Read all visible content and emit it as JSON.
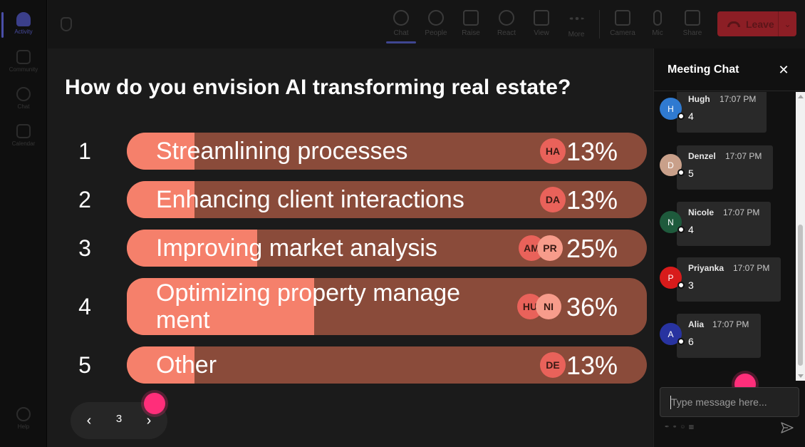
{
  "rail": {
    "items": [
      {
        "label": "Activity",
        "active": true
      },
      {
        "label": "Community",
        "active": false
      },
      {
        "label": "Chat",
        "active": false
      },
      {
        "label": "Calendar",
        "active": false
      }
    ],
    "help_label": "Help"
  },
  "toolbar": {
    "items": [
      {
        "label": "Chat",
        "icon": "chat-icon"
      },
      {
        "label": "People",
        "icon": "people-icon"
      },
      {
        "label": "Raise",
        "icon": "raise-hand-icon"
      },
      {
        "label": "React",
        "icon": "react-icon"
      },
      {
        "label": "View",
        "icon": "view-icon"
      },
      {
        "label": "More",
        "icon": "more-icon"
      },
      {
        "label": "Camera",
        "icon": "camera-icon"
      },
      {
        "label": "Mic",
        "icon": "mic-icon"
      },
      {
        "label": "Share",
        "icon": "share-icon"
      }
    ],
    "leave_label": "Leave",
    "leave_color": "#8c1e25"
  },
  "poll": {
    "question": "How do you envision AI transforming real estate?",
    "options": [
      {
        "number": "1",
        "text": "Streamlining processes",
        "percent": "13%",
        "fraction": 0.13,
        "avatars": [
          "HA"
        ]
      },
      {
        "number": "2",
        "text": "Enhancing client interactions",
        "percent": "13%",
        "fraction": 0.13,
        "avatars": [
          "DA"
        ]
      },
      {
        "number": "3",
        "text": "Improving market analysis",
        "percent": "25%",
        "fraction": 0.25,
        "avatars": [
          "AM",
          "PR"
        ]
      },
      {
        "number": "4",
        "text": "Optimizing property manage ment",
        "percent": "36%",
        "fraction": 0.36,
        "avatars": [
          "HU",
          "NI"
        ]
      },
      {
        "number": "5",
        "text": "Other",
        "percent": "13%",
        "fraction": 0.13,
        "avatars": [
          "DE"
        ]
      }
    ],
    "colors": {
      "fill": "#f5806b",
      "track": "#8a4b3a"
    },
    "page": "3"
  },
  "chat": {
    "title": "Meeting Chat",
    "messages": [
      {
        "initial": "H",
        "name": "Hugh",
        "time": "17:07 PM",
        "text": "4",
        "color": "#2f7ad1"
      },
      {
        "initial": "D",
        "name": "Denzel",
        "time": "17:07 PM",
        "text": "5",
        "color": "#c9a08a"
      },
      {
        "initial": "N",
        "name": "Nicole",
        "time": "17:07 PM",
        "text": "4",
        "color": "#1e5a3c"
      },
      {
        "initial": "P",
        "name": "Priyanka",
        "time": "17:07 PM",
        "text": "3",
        "color": "#d81b1b"
      },
      {
        "initial": "A",
        "name": "Alia",
        "time": "17:07 PM",
        "text": "6",
        "color": "#2833a0"
      }
    ],
    "input_placeholder": "Type message here..."
  }
}
